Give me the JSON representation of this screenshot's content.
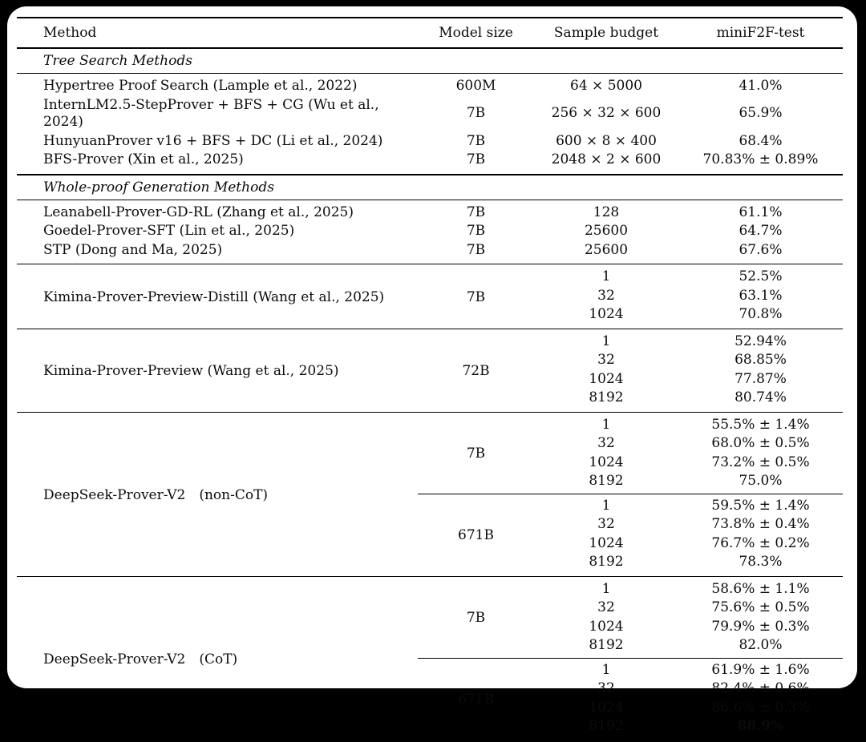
{
  "page": {
    "background_color": "#000000",
    "card_color": "#ffffff",
    "text_color": "#0b0b0b"
  },
  "table": {
    "headers": [
      "Method",
      "Model size",
      "Sample budget",
      "miniF2F-test"
    ],
    "sections": [
      {
        "label": "Tree Search Methods",
        "heavy_top": false,
        "blocks": [
          {
            "entries": [
              {
                "method": "Hypertree Proof Search (Lample et al., 2022)",
                "model_blocks": [
                  {
                    "model_size": "600M",
                    "rows": [
                      {
                        "budget": "64 × 5000",
                        "result": "41.0%"
                      }
                    ]
                  }
                ]
              },
              {
                "method": "InternLM2.5-StepProver + BFS + CG (Wu et al., 2024)",
                "model_blocks": [
                  {
                    "model_size": "7B",
                    "rows": [
                      {
                        "budget": "256 × 32 × 600",
                        "result": "65.9%"
                      }
                    ]
                  }
                ]
              },
              {
                "method": "HunyuanProver v16 + BFS + DC (Li et al., 2024)",
                "model_blocks": [
                  {
                    "model_size": "7B",
                    "rows": [
                      {
                        "budget": "600 × 8 × 400",
                        "result": "68.4%"
                      }
                    ]
                  }
                ]
              },
              {
                "method": "BFS-Prover (Xin et al., 2025)",
                "model_blocks": [
                  {
                    "model_size": "7B",
                    "rows": [
                      {
                        "budget": "2048 × 2 × 600",
                        "result": "70.83% ± 0.89%"
                      }
                    ]
                  }
                ]
              }
            ]
          }
        ]
      },
      {
        "label": "Whole-proof Generation Methods",
        "heavy_top": true,
        "blocks": [
          {
            "entries": [
              {
                "method": "Leanabell-Prover-GD-RL (Zhang et al., 2025)",
                "model_blocks": [
                  {
                    "model_size": "7B",
                    "rows": [
                      {
                        "budget": "128",
                        "result": "61.1%"
                      }
                    ]
                  }
                ]
              },
              {
                "method": "Goedel-Prover-SFT (Lin et al., 2025)",
                "model_blocks": [
                  {
                    "model_size": "7B",
                    "rows": [
                      {
                        "budget": "25600",
                        "result": "64.7%"
                      }
                    ]
                  }
                ]
              },
              {
                "method": "STP (Dong and Ma, 2025)",
                "model_blocks": [
                  {
                    "model_size": "7B",
                    "rows": [
                      {
                        "budget": "25600",
                        "result": "67.6%"
                      }
                    ]
                  }
                ]
              }
            ]
          },
          {
            "entries": [
              {
                "method": "Kimina-Prover-Preview-Distill (Wang et al., 2025)",
                "model_blocks": [
                  {
                    "model_size": "7B",
                    "rows": [
                      {
                        "budget": "1",
                        "result": "52.5%"
                      },
                      {
                        "budget": "32",
                        "result": "63.1%"
                      },
                      {
                        "budget": "1024",
                        "result": "70.8%"
                      }
                    ]
                  }
                ]
              }
            ]
          },
          {
            "entries": [
              {
                "method": "Kimina-Prover-Preview (Wang et al., 2025)",
                "model_blocks": [
                  {
                    "model_size": "72B",
                    "rows": [
                      {
                        "budget": "1",
                        "result": "52.94%"
                      },
                      {
                        "budget": "32",
                        "result": "68.85%"
                      },
                      {
                        "budget": "1024",
                        "result": "77.87%"
                      },
                      {
                        "budget": "8192",
                        "result": "80.74%"
                      }
                    ]
                  }
                ]
              }
            ]
          },
          {
            "entries": [
              {
                "method": "DeepSeek-Prover-V2 (non-CoT)",
                "model_blocks": [
                  {
                    "model_size": "7B",
                    "rows": [
                      {
                        "budget": "1",
                        "result": "55.5% ± 1.4%"
                      },
                      {
                        "budget": "32",
                        "result": "68.0% ± 0.5%"
                      },
                      {
                        "budget": "1024",
                        "result": "73.2% ± 0.5%"
                      },
                      {
                        "budget": "8192",
                        "result": "75.0%"
                      }
                    ]
                  },
                  {
                    "model_size": "671B",
                    "rows": [
                      {
                        "budget": "1",
                        "result": "59.5% ± 1.4%"
                      },
                      {
                        "budget": "32",
                        "result": "73.8% ± 0.4%"
                      },
                      {
                        "budget": "1024",
                        "result": "76.7% ± 0.2%"
                      },
                      {
                        "budget": "8192",
                        "result": "78.3%"
                      }
                    ]
                  }
                ]
              }
            ]
          },
          {
            "entries": [
              {
                "method": "DeepSeek-Prover-V2 (CoT)",
                "model_blocks": [
                  {
                    "model_size": "7B",
                    "rows": [
                      {
                        "budget": "1",
                        "result": "58.6% ± 1.1%"
                      },
                      {
                        "budget": "32",
                        "result": "75.6% ± 0.5%"
                      },
                      {
                        "budget": "1024",
                        "result": "79.9% ± 0.3%"
                      },
                      {
                        "budget": "8192",
                        "result": "82.0%"
                      }
                    ]
                  },
                  {
                    "model_size": "671B",
                    "rows": [
                      {
                        "budget": "1",
                        "result": "61.9% ± 1.6%"
                      },
                      {
                        "budget": "32",
                        "result": "82.4% ± 0.6%"
                      },
                      {
                        "budget": "1024",
                        "result": "86.6% ± 0.3%"
                      },
                      {
                        "budget": "8192",
                        "result": "88.9%",
                        "bold": true
                      }
                    ]
                  }
                ]
              }
            ]
          }
        ]
      }
    ]
  }
}
